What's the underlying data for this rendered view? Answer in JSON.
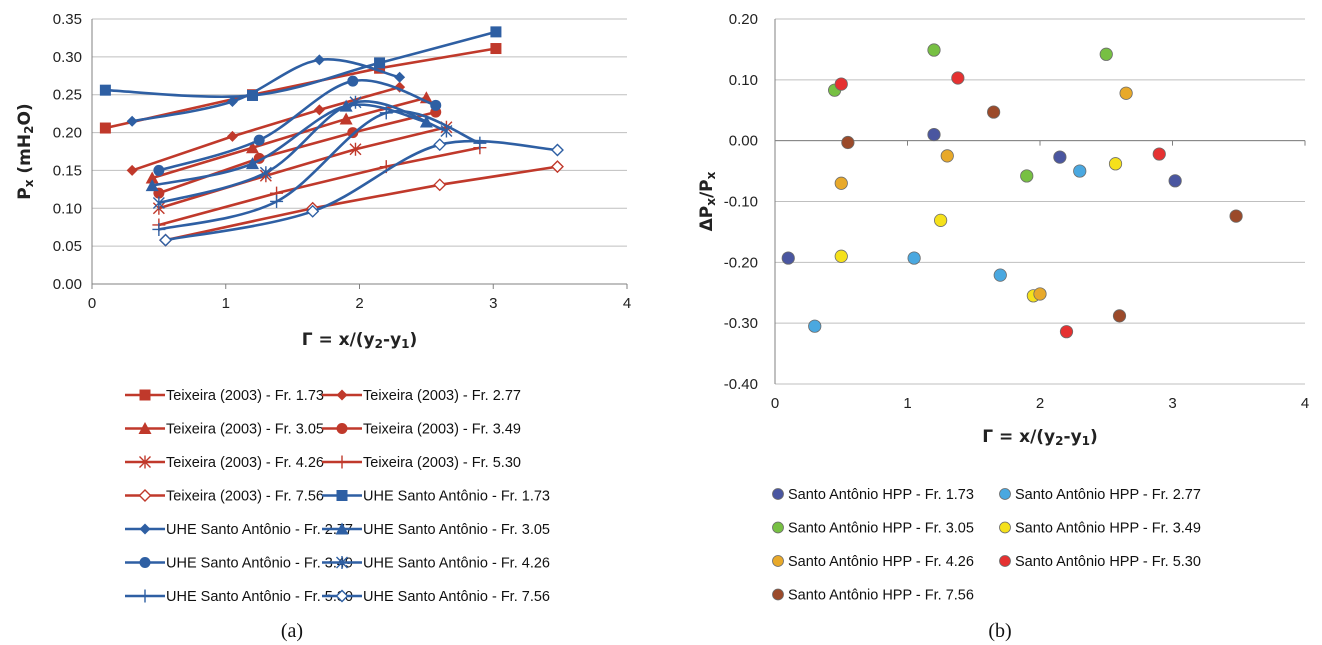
{
  "chart_data": [
    {
      "type": "line",
      "panel_label": "(a)",
      "xlabel": "Γ = x/(y2-y1)",
      "ylabel": "Px (mH2O)",
      "xlim": [
        0,
        4
      ],
      "ylim": [
        0,
        0.35
      ],
      "xticks": [
        "0",
        "1",
        "2",
        "3",
        "4"
      ],
      "yticks": [
        "0.00",
        "0.05",
        "0.10",
        "0.15",
        "0.20",
        "0.25",
        "0.30",
        "0.35"
      ],
      "grid": "horizontal",
      "legend_position": "bottom",
      "series": [
        {
          "name": "Teixeira (2003) - Fr. 1.73",
          "color": "#c0392b",
          "marker": "square",
          "smooth": false,
          "points": [
            [
              0.1,
              0.206
            ],
            [
              1.2,
              0.25
            ],
            [
              2.15,
              0.285
            ],
            [
              3.02,
              0.311
            ]
          ]
        },
        {
          "name": "Teixeira (2003) - Fr. 2.77",
          "color": "#c0392b",
          "marker": "diamond",
          "smooth": false,
          "points": [
            [
              0.3,
              0.15
            ],
            [
              1.05,
              0.195
            ],
            [
              1.7,
              0.23
            ],
            [
              2.3,
              0.26
            ]
          ]
        },
        {
          "name": "Teixeira (2003) - Fr. 3.05",
          "color": "#c0392b",
          "marker": "triangle",
          "smooth": false,
          "points": [
            [
              0.45,
              0.14
            ],
            [
              1.2,
              0.18
            ],
            [
              1.9,
              0.218
            ],
            [
              2.5,
              0.246
            ]
          ]
        },
        {
          "name": "Teixeira (2003) - Fr. 3.49",
          "color": "#c0392b",
          "marker": "circle",
          "smooth": false,
          "points": [
            [
              0.5,
              0.12
            ],
            [
              1.25,
              0.166
            ],
            [
              1.95,
              0.2
            ],
            [
              2.57,
              0.227
            ]
          ]
        },
        {
          "name": "Teixeira (2003) - Fr. 4.26",
          "color": "#c0392b",
          "marker": "star",
          "smooth": false,
          "points": [
            [
              0.5,
              0.1
            ],
            [
              1.3,
              0.143
            ],
            [
              1.97,
              0.178
            ],
            [
              2.65,
              0.207
            ]
          ]
        },
        {
          "name": "Teixeira (2003) - Fr. 5.30",
          "color": "#c0392b",
          "marker": "plus",
          "smooth": false,
          "points": [
            [
              0.5,
              0.078
            ],
            [
              1.38,
              0.12
            ],
            [
              2.2,
              0.155
            ],
            [
              2.9,
              0.18
            ]
          ]
        },
        {
          "name": "Teixeira (2003) - Fr. 7.56",
          "color": "#c0392b",
          "marker": "open-diamond",
          "smooth": false,
          "points": [
            [
              0.55,
              0.058
            ],
            [
              1.65,
              0.1
            ],
            [
              2.6,
              0.131
            ],
            [
              3.48,
              0.155
            ]
          ]
        },
        {
          "name": "UHE Santo Antônio - Fr. 1.73",
          "color": "#2e5fa3",
          "marker": "square",
          "smooth": true,
          "points": [
            [
              0.1,
              0.256
            ],
            [
              1.2,
              0.249
            ],
            [
              2.15,
              0.292
            ],
            [
              3.02,
              0.333
            ]
          ]
        },
        {
          "name": "UHE Santo Antônio - Fr. 2.77",
          "color": "#2e5fa3",
          "marker": "diamond",
          "smooth": true,
          "points": [
            [
              0.3,
              0.215
            ],
            [
              1.05,
              0.241
            ],
            [
              1.7,
              0.296
            ],
            [
              2.3,
              0.273
            ]
          ]
        },
        {
          "name": "UHE Santo Antônio - Fr. 3.05",
          "color": "#2e5fa3",
          "marker": "triangle",
          "smooth": true,
          "points": [
            [
              0.45,
              0.13
            ],
            [
              1.2,
              0.159
            ],
            [
              1.9,
              0.235
            ],
            [
              2.5,
              0.214
            ]
          ]
        },
        {
          "name": "UHE Santo Antônio - Fr. 3.49",
          "color": "#2e5fa3",
          "marker": "circle",
          "smooth": true,
          "points": [
            [
              0.5,
              0.15
            ],
            [
              1.25,
              0.19
            ],
            [
              1.95,
              0.268
            ],
            [
              2.57,
              0.236
            ]
          ]
        },
        {
          "name": "UHE Santo Antônio - Fr. 4.26",
          "color": "#2e5fa3",
          "marker": "star",
          "smooth": true,
          "points": [
            [
              0.5,
              0.107
            ],
            [
              1.3,
              0.147
            ],
            [
              1.97,
              0.24
            ],
            [
              2.65,
              0.202
            ]
          ]
        },
        {
          "name": "UHE Santo Antônio - Fr. 5.30",
          "color": "#2e5fa3",
          "marker": "plus",
          "smooth": true,
          "points": [
            [
              0.5,
              0.072
            ],
            [
              1.38,
              0.109
            ],
            [
              2.2,
              0.226
            ],
            [
              2.9,
              0.186
            ]
          ]
        },
        {
          "name": "UHE Santo Antônio - Fr. 7.56",
          "color": "#2e5fa3",
          "marker": "open-diamond",
          "smooth": true,
          "points": [
            [
              0.55,
              0.058
            ],
            [
              1.65,
              0.096
            ],
            [
              2.6,
              0.184
            ],
            [
              3.48,
              0.177
            ]
          ]
        }
      ]
    },
    {
      "type": "scatter",
      "panel_label": "(b)",
      "xlabel": "Γ = x/(y2-y1)",
      "ylabel": "ΔPx/Px",
      "xlim": [
        0,
        4
      ],
      "ylim": [
        -0.4,
        0.2
      ],
      "xticks": [
        "0",
        "1",
        "2",
        "3",
        "4"
      ],
      "yticks": [
        "-0.40",
        "-0.30",
        "-0.20",
        "-0.10",
        "0.00",
        "0.10",
        "0.20"
      ],
      "grid": "horizontal",
      "legend_position": "bottom",
      "series": [
        {
          "name": "Santo Antônio HPP - Fr. 1.73",
          "color": "#4a56a0",
          "points": [
            [
              0.1,
              -0.193
            ],
            [
              1.2,
              0.01
            ],
            [
              2.15,
              -0.027
            ],
            [
              3.02,
              -0.066
            ]
          ]
        },
        {
          "name": "Santo Antônio HPP - Fr. 2.77",
          "color": "#4aa8e0",
          "points": [
            [
              0.3,
              -0.305
            ],
            [
              1.05,
              -0.193
            ],
            [
              1.7,
              -0.221
            ],
            [
              2.3,
              -0.05
            ]
          ]
        },
        {
          "name": "Santo Antônio HPP - Fr. 3.05",
          "color": "#77c043",
          "points": [
            [
              0.45,
              0.083
            ],
            [
              1.2,
              0.149
            ],
            [
              1.9,
              -0.058
            ],
            [
              2.5,
              0.142
            ]
          ]
        },
        {
          "name": "Santo Antônio HPP - Fr. 3.49",
          "color": "#f5e11b",
          "points": [
            [
              0.5,
              -0.19
            ],
            [
              1.25,
              -0.131
            ],
            [
              1.95,
              -0.255
            ],
            [
              2.57,
              -0.038
            ]
          ]
        },
        {
          "name": "Santo Antônio HPP - Fr. 4.26",
          "color": "#e8a92a",
          "points": [
            [
              0.5,
              -0.07
            ],
            [
              1.3,
              -0.025
            ],
            [
              2.0,
              -0.252
            ],
            [
              2.65,
              0.078
            ]
          ]
        },
        {
          "name": "Santo Antônio HPP - Fr. 5.30",
          "color": "#e53131",
          "points": [
            [
              0.5,
              0.093
            ],
            [
              1.38,
              0.103
            ],
            [
              2.2,
              -0.314
            ],
            [
              2.9,
              -0.022
            ]
          ]
        },
        {
          "name": "Santo Antônio HPP - Fr. 7.56",
          "color": "#9b4a2a",
          "points": [
            [
              0.55,
              -0.003
            ],
            [
              1.65,
              0.047
            ],
            [
              2.6,
              -0.288
            ],
            [
              3.48,
              -0.124
            ]
          ]
        }
      ]
    }
  ]
}
